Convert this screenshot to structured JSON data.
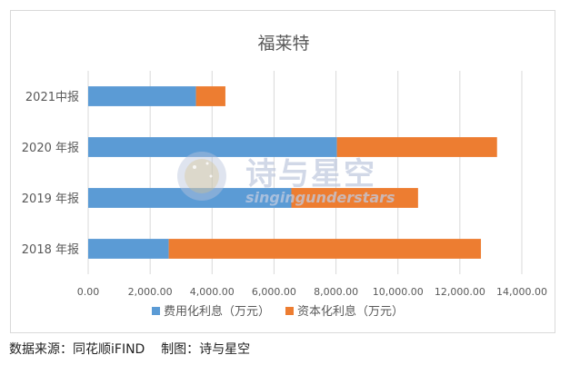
{
  "chart_data": {
    "type": "bar",
    "orientation": "horizontal",
    "stacked": true,
    "title": "福莱特",
    "categories": [
      "2021中报",
      "2020 年报",
      "2019 年报",
      "2018 年报"
    ],
    "series": [
      {
        "name": "费用化利息（万元）",
        "color": "#5b9bd5",
        "values": [
          3480,
          8030,
          6560,
          2600
        ]
      },
      {
        "name": "资本化利息（万元）",
        "color": "#ed7d31",
        "values": [
          950,
          5170,
          4090,
          10080
        ]
      }
    ],
    "xlim": [
      0,
      14000
    ],
    "xticks": [
      "0.00",
      "2,000.00",
      "4,000.00",
      "6,000.00",
      "8,000.00",
      "10,000.00",
      "12,000.00",
      "14,000.00"
    ],
    "grid": "vertical",
    "legend_position": "bottom"
  },
  "watermark": {
    "cn_text": "诗与星空",
    "en_text": "singingunderstars"
  },
  "source": {
    "text": "数据来源：同花顺iFIND    制图：诗与星空"
  }
}
